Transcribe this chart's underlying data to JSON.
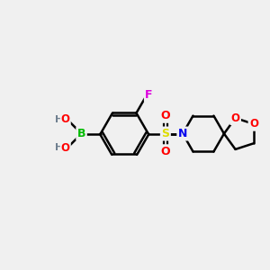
{
  "background_color": "#f0f0f0",
  "bond_color": "#000000",
  "atom_colors": {
    "B": "#00bb00",
    "F": "#dd00dd",
    "O": "#ff0000",
    "N": "#0000ee",
    "S": "#dddd00",
    "H": "#708090",
    "C": "#000000"
  },
  "figsize": [
    3.0,
    3.0
  ],
  "dpi": 100
}
